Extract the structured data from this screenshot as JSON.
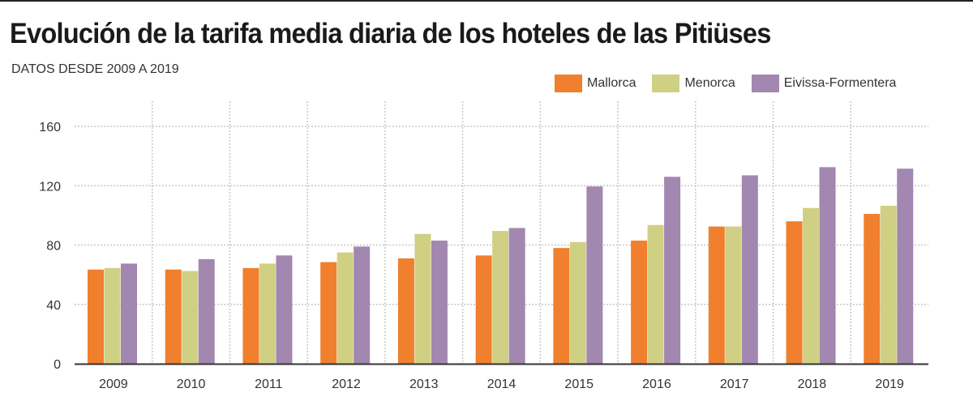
{
  "title": "Evolución de la tarifa media diaria de los hoteles de las Pitiüses",
  "subtitle": "DATOS DESDE 2009 A 2019",
  "chart_data": {
    "type": "bar",
    "title": "Evolución de la tarifa media diaria de los hoteles de las Pitiüses",
    "subtitle": "DATOS DESDE 2009 A 2019",
    "categories": [
      "2009",
      "2010",
      "2011",
      "2012",
      "2013",
      "2014",
      "2015",
      "2016",
      "2017",
      "2018",
      "2019"
    ],
    "series": [
      {
        "name": "Mallorca",
        "color": "#f07f2e",
        "values": [
          63.5,
          63.5,
          64.5,
          68.5,
          71,
          73,
          78,
          83,
          92.5,
          96,
          101
        ]
      },
      {
        "name": "Menorca",
        "color": "#cfd084",
        "values": [
          64.5,
          62.5,
          67.5,
          75,
          87.5,
          89.5,
          82,
          93.5,
          92.5,
          105,
          106.5
        ]
      },
      {
        "name": "Eivissa-Formentera",
        "color": "#a287b0",
        "values": [
          67.5,
          70.5,
          73,
          79,
          83,
          91.5,
          119.5,
          126,
          127,
          132.5,
          131.5
        ]
      }
    ],
    "ylim": [
      0,
      160
    ],
    "yticks": [
      "0",
      "40",
      "80",
      "120",
      "160"
    ],
    "ytick_values": [
      0,
      40,
      80,
      120,
      160
    ],
    "grid": true,
    "legend_position": "top-right",
    "xlabel": "",
    "ylabel": ""
  }
}
